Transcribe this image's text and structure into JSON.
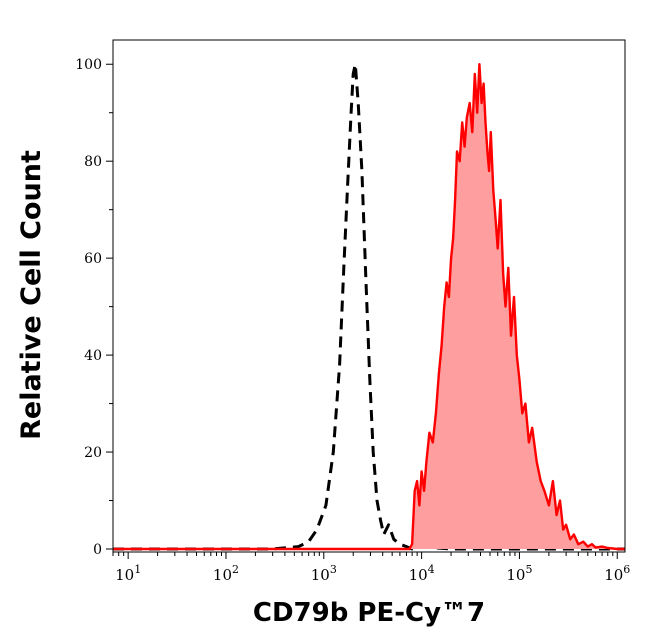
{
  "chart_data": {
    "type": "area",
    "xlabel": "CD79b PE-Cy™7",
    "ylabel": "Relative Cell Count",
    "x_scale": "log",
    "xlim": [
      7,
      1200000
    ],
    "ylim": [
      0,
      105
    ],
    "grid": false,
    "x_ticks": [
      {
        "base": "10",
        "exp": "1",
        "value": 10
      },
      {
        "base": "10",
        "exp": "2",
        "value": 100
      },
      {
        "base": "10",
        "exp": "3",
        "value": 1000
      },
      {
        "base": "10",
        "exp": "4",
        "value": 10000
      },
      {
        "base": "10",
        "exp": "5",
        "value": 100000
      },
      {
        "base": "10",
        "exp": "6",
        "value": 1000000
      }
    ],
    "y_ticks": [
      {
        "label": "0",
        "value": 0
      },
      {
        "label": "20",
        "value": 20
      },
      {
        "label": "40",
        "value": 40
      },
      {
        "label": "60",
        "value": 60
      },
      {
        "label": "80",
        "value": 80
      },
      {
        "label": "100",
        "value": 100
      }
    ],
    "series": [
      {
        "style": "dashed",
        "color": "#000000",
        "fill": "none",
        "x": [
          7,
          300,
          550,
          700,
          850,
          1050,
          1250,
          1450,
          1600,
          1750,
          1900,
          2000,
          2100,
          2250,
          2450,
          2700,
          2950,
          3200,
          3500,
          3800,
          4100,
          4600,
          5200,
          6000,
          7000,
          8000,
          9000,
          20000,
          100000,
          1200000
        ],
        "y": [
          0,
          0,
          0.5,
          1.5,
          4,
          9,
          20,
          38,
          58,
          75,
          90,
          98,
          100,
          92,
          78,
          55,
          35,
          20,
          10,
          6,
          3,
          5,
          2,
          1,
          0.5,
          0,
          0.5,
          0,
          0,
          0
        ]
      },
      {
        "style": "solid",
        "color": "#ff0000",
        "fill": "#ff9e9e",
        "x": [
          7,
          7500,
          8000,
          8500,
          9000,
          9500,
          10000,
          10600,
          11200,
          12000,
          13000,
          14000,
          15000,
          16000,
          17000,
          18000,
          19000,
          20000,
          21000,
          22000,
          23000,
          24500,
          26000,
          27500,
          29000,
          31000,
          33000,
          35000,
          37000,
          39000,
          41000,
          43000,
          45000,
          47000,
          49000,
          51000,
          54000,
          57000,
          60000,
          64000,
          68000,
          72000,
          77000,
          82000,
          88000,
          94000,
          100000,
          107000,
          115000,
          125000,
          135000,
          150000,
          165000,
          180000,
          200000,
          220000,
          240000,
          260000,
          280000,
          300000,
          330000,
          360000,
          400000,
          450000,
          500000,
          550000,
          600000,
          700000,
          800000,
          1000000,
          1200000
        ],
        "y": [
          0,
          0,
          1,
          12,
          14,
          9,
          16,
          12,
          18,
          24,
          22,
          28,
          36,
          42,
          50,
          55,
          52,
          60,
          64,
          72,
          82,
          80,
          88,
          83,
          89,
          92,
          86,
          98,
          90,
          100,
          92,
          96,
          88,
          82,
          78,
          86,
          74,
          68,
          62,
          72,
          57,
          50,
          58,
          44,
          52,
          40,
          35,
          28,
          30,
          22,
          25,
          18,
          14,
          12,
          9,
          14,
          7,
          10,
          4,
          5,
          2,
          3,
          1,
          1.5,
          0.5,
          1,
          0.3,
          0.5,
          0.2,
          0,
          0
        ]
      }
    ]
  }
}
